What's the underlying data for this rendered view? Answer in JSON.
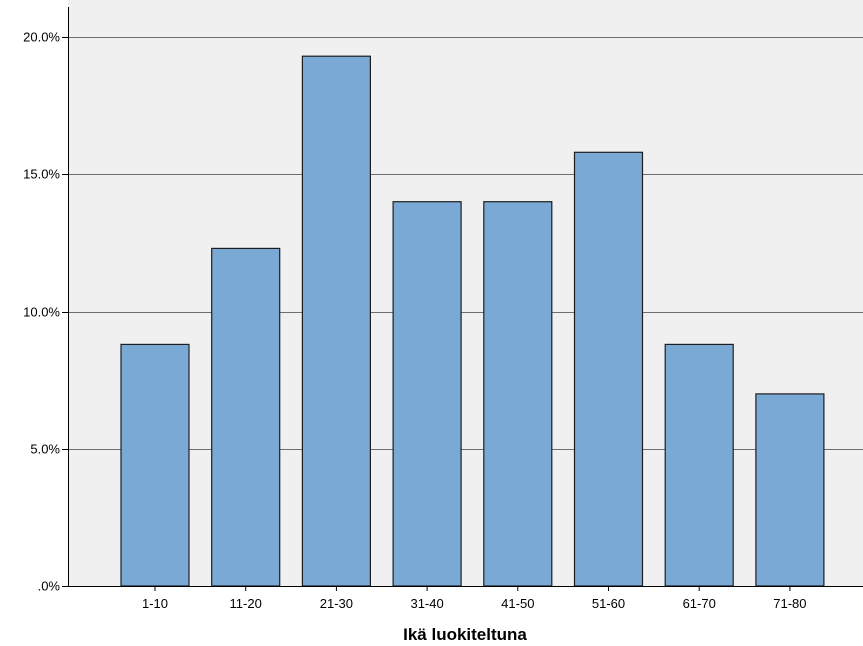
{
  "chart_data": {
    "type": "bar",
    "categories": [
      "1-10",
      "11-20",
      "21-30",
      "31-40",
      "41-50",
      "51-60",
      "61-70",
      "71-80"
    ],
    "values": [
      8.8,
      12.3,
      19.3,
      14.0,
      14.0,
      15.8,
      8.8,
      7.0
    ],
    "title": "",
    "xlabel": "Ikä luokiteltuna",
    "ylabel": "",
    "ylim": [
      0,
      20.0
    ],
    "yticks": [
      0,
      5,
      10,
      15,
      20
    ],
    "ytick_labels": [
      ".0%",
      "5.0%",
      "10.0%",
      "15.0%",
      "20.0%"
    ],
    "grid": "horizontal",
    "legend": "none",
    "colors": {
      "bar_fill": "#7BA9D6",
      "bar_stroke": "#1E1E1E",
      "plot_background": "#F0F0F0",
      "grid_line": "#6E6E6E",
      "axis_line": "#000000"
    }
  }
}
